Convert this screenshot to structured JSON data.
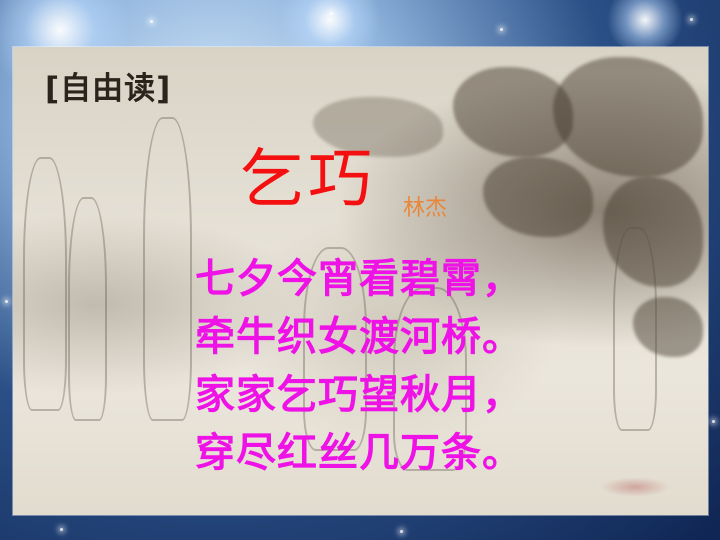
{
  "slide": {
    "section_label": "[自由读]",
    "poem_title": "乞巧",
    "poem_author": "林杰",
    "poem_lines": [
      "七夕今宵看碧霄，",
      "牵牛织女渡河桥。",
      "家家乞巧望秋月，",
      "穿尽红丝几万条。"
    ]
  },
  "colors": {
    "title": "#f41010",
    "author": "#e8873a",
    "poem": "#ee12e6",
    "label": "#2b241c",
    "background": "#1a3a70"
  }
}
